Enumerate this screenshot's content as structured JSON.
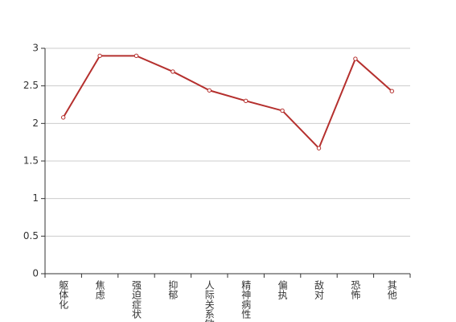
{
  "chart_data": {
    "type": "line",
    "categories": [
      "躯体化",
      "焦虑",
      "强迫症状",
      "抑郁",
      "人际关系敏感",
      "精神病性",
      "偏执",
      "敌对",
      "恐怖",
      "其他"
    ],
    "values": [
      2.08,
      2.9,
      2.9,
      2.69,
      2.44,
      2.3,
      2.17,
      1.67,
      2.86,
      2.43
    ],
    "color": "#b5302e",
    "ylim": [
      0,
      3
    ],
    "yticks": [
      0,
      0.5,
      1,
      1.5,
      2,
      2.5,
      3
    ],
    "grid": true
  }
}
